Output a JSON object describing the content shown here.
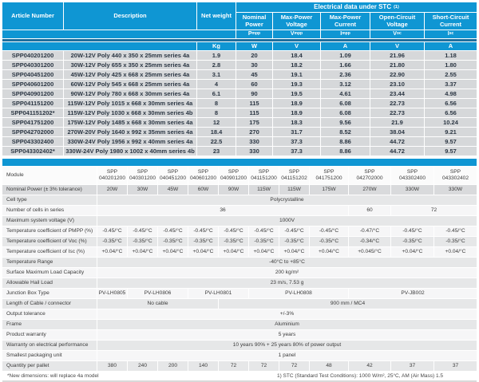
{
  "colors": {
    "blue": "#0f96d3",
    "rule": "#1e6f9e",
    "row": "#d6d8da",
    "strip": "#d9d9d9"
  },
  "table1": {
    "headers": {
      "article": "Article Number",
      "description": "Description",
      "net_weight": "Net weight",
      "stc_title": "Electrical data under STC",
      "stc_note": "(1)",
      "kg": "Kg",
      "cols": [
        {
          "label": "Nominal Power",
          "sym_base": "P",
          "sym_sub": "mpp",
          "unit": "W"
        },
        {
          "label": "Max-Power Voltage",
          "sym_base": "V",
          "sym_sub": "mpp",
          "unit": "V"
        },
        {
          "label": "Max-Power Current",
          "sym_base": "I",
          "sym_sub": "mpp",
          "unit": "A"
        },
        {
          "label": "Open-Circuit Voltage",
          "sym_base": "V",
          "sym_sub": "oc",
          "unit": "V"
        },
        {
          "label": "Short-Circuit Current",
          "sym_base": "I",
          "sym_sub": "sc",
          "unit": "A"
        }
      ]
    },
    "rows": [
      {
        "article": "SPP040201200",
        "description": "20W-12V Poly 440 x 350 x 25mm series 4a",
        "kg": "1.9",
        "w": "20",
        "vmpp": "18.4",
        "impp": "1.09",
        "voc": "21.96",
        "isc": "1.18"
      },
      {
        "article": "SPP040301200",
        "description": "30W-12V Poly 655 x 350 x 25mm series 4a",
        "kg": "2.8",
        "w": "30",
        "vmpp": "18.2",
        "impp": "1.66",
        "voc": "21.80",
        "isc": "1.80"
      },
      {
        "article": "SPP040451200",
        "description": "45W-12V Poly 425 x 668 x 25mm series 4a",
        "kg": "3.1",
        "w": "45",
        "vmpp": "19.1",
        "impp": "2.36",
        "voc": "22.90",
        "isc": "2.55"
      },
      {
        "article": "SPP040601200",
        "description": "60W-12V Poly 545 x 668 x 25mm series 4a",
        "kg": "4",
        "w": "60",
        "vmpp": "19.3",
        "impp": "3.12",
        "voc": "23.10",
        "isc": "3.37"
      },
      {
        "article": "SPP040901200",
        "description": "90W-12V Poly 780 x 668 x 30mm series 4a",
        "kg": "6.1",
        "w": "90",
        "vmpp": "19.5",
        "impp": "4.61",
        "voc": "23.44",
        "isc": "4.98"
      },
      {
        "article": "SPP041151200",
        "description": "115W-12V Poly 1015 x 668 x 30mm series 4a",
        "kg": "8",
        "w": "115",
        "vmpp": "18.9",
        "impp": "6.08",
        "voc": "22.73",
        "isc": "6.56"
      },
      {
        "article": "SPP041151202*",
        "description": "115W-12V Poly 1030 x 668 x 30mm series 4b",
        "kg": "8",
        "w": "115",
        "vmpp": "18.9",
        "impp": "6.08",
        "voc": "22.73",
        "isc": "6.56"
      },
      {
        "article": "SPP041751200",
        "description": "175W-12V Poly 1485 x 668 x 30mm series 4a",
        "kg": "12",
        "w": "175",
        "vmpp": "18.3",
        "impp": "9.56",
        "voc": "21.9",
        "isc": "10.24"
      },
      {
        "article": "SPP042702000",
        "description": "270W-20V Poly 1640 x 992 x 35mm series 4a",
        "kg": "18.4",
        "w": "270",
        "vmpp": "31.7",
        "impp": "8.52",
        "voc": "38.04",
        "isc": "9.21"
      },
      {
        "article": "SPP043302400",
        "description": "330W-24V Poly 1956 x 992 x 40mm series 4a",
        "kg": "22.5",
        "w": "330",
        "vmpp": "37.3",
        "impp": "8.86",
        "voc": "44.72",
        "isc": "9.57"
      },
      {
        "article": "SPP043302402*",
        "description": "330W-24V Poly 1980 x 1002 x 40mm series 4b",
        "kg": "23",
        "w": "330",
        "vmpp": "37.3",
        "impp": "8.86",
        "voc": "44.72",
        "isc": "9.57"
      }
    ]
  },
  "table2": {
    "module_label": "Module",
    "modules": [
      {
        "l1": "SPP",
        "l2": "040201200"
      },
      {
        "l1": "SPP",
        "l2": "040301200"
      },
      {
        "l1": "SPP",
        "l2": "040451200"
      },
      {
        "l1": "SPP",
        "l2": "040601200"
      },
      {
        "l1": "SPP",
        "l2": "040901200"
      },
      {
        "l1": "SPP",
        "l2": "041151200"
      },
      {
        "l1": "SPP",
        "l2": "041151202"
      },
      {
        "l1": "SPP",
        "l2": "041751200"
      },
      {
        "l1": "SPP",
        "l2": "042702000"
      },
      {
        "l1": "SPP",
        "l2": "043302400"
      },
      {
        "l1": "SPP",
        "l2": "043302402"
      }
    ],
    "nominal": {
      "label": "Nominal Power  (± 3% tolerance)",
      "values": [
        "20W",
        "30W",
        "45W",
        "60W",
        "90W",
        "115W",
        "115W",
        "175W",
        "270W",
        "330W",
        "330W"
      ]
    },
    "cell_type": {
      "label": "Cell type",
      "value": "Polycrystalline"
    },
    "cells_series": {
      "label": "Number of cells in series",
      "v36": "36",
      "v60": "60",
      "v72": "72"
    },
    "max_voltage": {
      "label": "Maximum system voltage (V)",
      "value": "1000V"
    },
    "temp_pmpp": {
      "label": "Temperature coefficient of PMPP (%)",
      "values": [
        "-0.45/°C",
        "-0.45/°C",
        "-0.45/°C",
        "-0.45/°C",
        "-0.45/°C",
        "-0.45/°C",
        "-0.45/°C",
        "-0.45/°C",
        "-0.47/°C",
        "-0.45/°C",
        "-0.45/°C"
      ]
    },
    "temp_voc": {
      "label": "Temperature coefficient of Voc (%)",
      "values": [
        "-0.35/°C",
        "-0.35/°C",
        "-0.35/°C",
        "-0.35/°C",
        "-0.35/°C",
        "-0.35/°C",
        "-0.35/°C",
        "-0.35/°C",
        "-0.34/°C",
        "-0.35/°C",
        "-0.35/°C"
      ]
    },
    "temp_isc": {
      "label": "Temperature coefficient of Isc (%)",
      "values": [
        "+0.04/°C",
        "+0.04/°C",
        "+0.04/°C",
        "+0.04/°C",
        "+0.04/°C",
        "+0.04/°C",
        "+0.04/°C",
        "+0.04/°C",
        "+0.045/°C",
        "+0.04/°C",
        "+0.04/°C"
      ]
    },
    "temp_range": {
      "label": "Temperature Range",
      "value": "-40°C to +85°C"
    },
    "surface_load": {
      "label": "Surface Maximum Load Capacity",
      "value": "200 kg/m²"
    },
    "hail": {
      "label": "Allowable Hail Load",
      "value": "23 m/s, 7.53 g"
    },
    "junction": {
      "label": "Junction Box Type",
      "v1": "PV-LH0805",
      "v2": "PV-LH0806",
      "v3": "PV-LH0801",
      "v4": "PV-LH0808",
      "v5": "PV-JB002"
    },
    "cable": {
      "label": "Length of Cable / connector",
      "v1": "No cable",
      "v2": "900 mm / MC4"
    },
    "output_tol": {
      "label": "Output tolerance",
      "value": "+/-3%"
    },
    "frame": {
      "label": "Frame",
      "value": "Aluminium"
    },
    "product_warranty": {
      "label": "Product warranty",
      "value": "5 years"
    },
    "warranty_elec": {
      "label": "Warranty on electrical performance",
      "value": "10 years 90% + 25 years 80% of power output"
    },
    "packaging": {
      "label": "Smallest packaging unit",
      "value": "1 panel"
    },
    "pallet": {
      "label": "Quantity per pallet",
      "values": [
        "380",
        "240",
        "200",
        "140",
        "72",
        "72",
        "72",
        "48",
        "42",
        "37",
        "37"
      ]
    }
  },
  "footer": {
    "left": "*New dimensions: will replace 4a model",
    "right": "1) STC (Standard Test Conditions): 1000 W/m², 25°C, AM (Air Mass) 1.5"
  }
}
